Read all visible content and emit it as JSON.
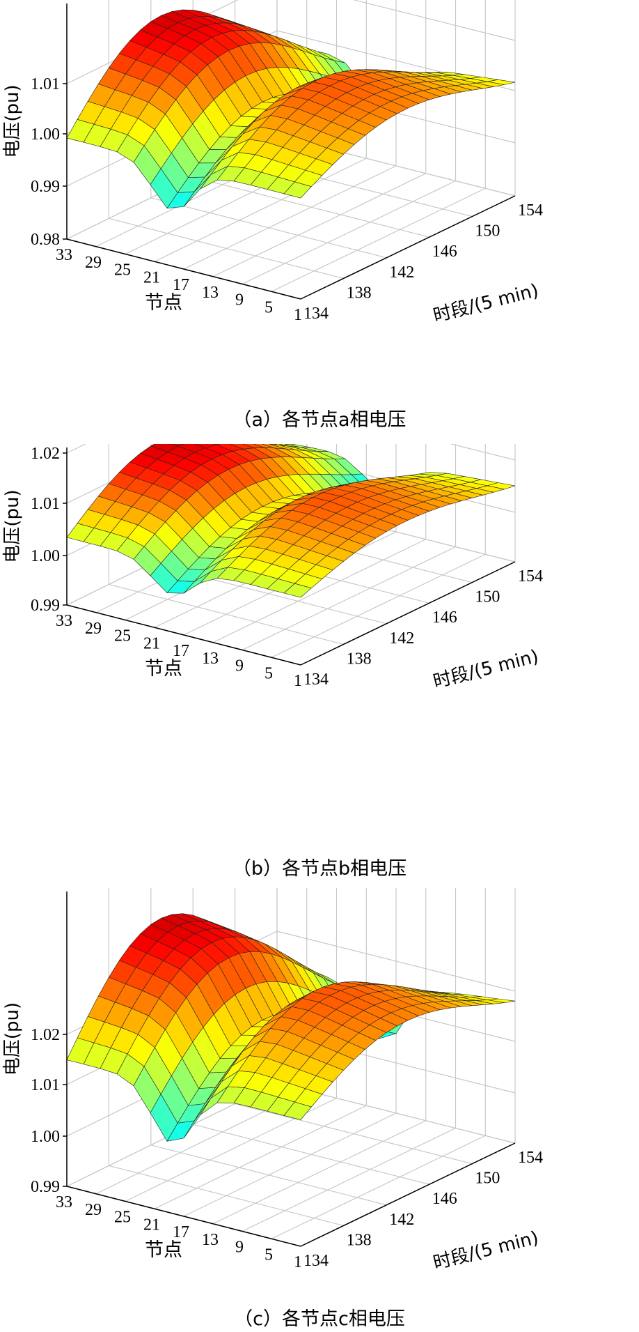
{
  "chart_data": [
    {
      "type": "surface3d",
      "panel_id": "a",
      "caption": "（a）各节点a相电压",
      "xlabel": "时段/(5 min)",
      "ylabel": "节点",
      "zlabel": "电压(pu)",
      "x_ticks": [
        "134",
        "138",
        "142",
        "146",
        "150",
        "154"
      ],
      "y_ticks": [
        "33",
        "29",
        "25",
        "21",
        "17",
        "13",
        "9",
        "5",
        "1"
      ],
      "z_ticks": [
        "0.98",
        "0.99",
        "1.00",
        "1.01"
      ],
      "xlim": [
        134,
        154
      ],
      "ylim": [
        1,
        33
      ],
      "zlim": [
        0.98,
        1.015
      ],
      "grid": true,
      "colormap": "jet"
    },
    {
      "type": "surface3d",
      "panel_id": "b",
      "caption": "（b）各节点b相电压",
      "xlabel": "时段/(5 min)",
      "ylabel": "节点",
      "zlabel": "电压(pu)",
      "x_ticks": [
        "134",
        "138",
        "142",
        "146",
        "150",
        "154"
      ],
      "y_ticks": [
        "33",
        "29",
        "25",
        "21",
        "17",
        "13",
        "9",
        "5",
        "1"
      ],
      "z_ticks": [
        "0.99",
        "1.00",
        "1.01",
        "1.02"
      ],
      "xlim": [
        134,
        154
      ],
      "ylim": [
        1,
        33
      ],
      "zlim": [
        0.99,
        1.025
      ],
      "grid": true,
      "colormap": "jet"
    },
    {
      "type": "surface3d",
      "panel_id": "c",
      "caption": "（c）各节点c相电压",
      "xlabel": "时段/(5 min)",
      "ylabel": "节点",
      "zlabel": "电压(pu)",
      "x_ticks": [
        "134",
        "138",
        "142",
        "146",
        "150",
        "154"
      ],
      "y_ticks": [
        "33",
        "29",
        "25",
        "21",
        "17",
        "13",
        "9",
        "5",
        "1"
      ],
      "z_ticks": [
        "0.99",
        "1.00",
        "1.01",
        "1.02"
      ],
      "xlim": [
        134,
        154
      ],
      "ylim": [
        1,
        33
      ],
      "zlim": [
        0.99,
        1.025
      ],
      "grid": true,
      "colormap": "jet"
    }
  ]
}
